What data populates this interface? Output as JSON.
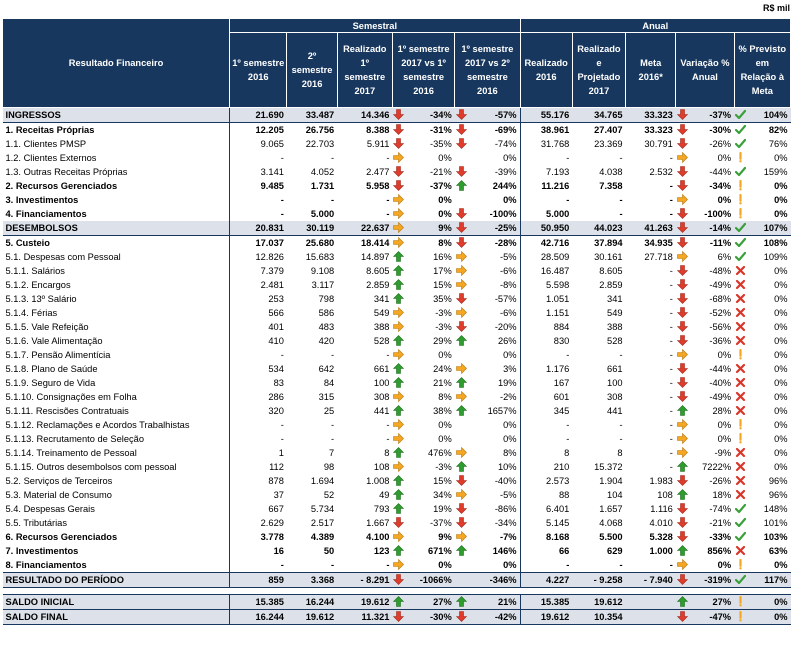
{
  "unit": "R$ mil",
  "header": {
    "row_label": "Resultado Financeiro",
    "group_semestral": "Semestral",
    "group_anual": "Anual",
    "cols": [
      "1º semestre 2016",
      "2º semestre 2016",
      "Realizado 1º semestre 2017",
      "1º semestre 2017 vs 1º semestre 2016",
      "1º semestre 2017 vs 2º semestre 2016",
      "Realizado 2016",
      "Realizado e Projetado 2017",
      "Meta 2016*",
      "Variação % Anual",
      "% Previsto em Relação à Meta"
    ]
  },
  "colors": {
    "header_bg": "#17375e",
    "up": "#2e9c2e",
    "down": "#e03c2c",
    "flat": "#f5a623",
    "check": "#3aa03a",
    "cross": "#d9362a",
    "warn": "#f5a623"
  },
  "rows": [
    {
      "label": "INGRESSOS",
      "bold": true,
      "shade": true,
      "v": [
        "21.690",
        "33.487",
        "14.346"
      ],
      "p1": [
        "-34%",
        "down"
      ],
      "p2": [
        "-57%",
        "down"
      ],
      "a": [
        "55.176",
        "34.765",
        "33.323"
      ],
      "va": [
        "-37%",
        "down"
      ],
      "pm": [
        "104%",
        "check"
      ]
    },
    {
      "label": "1. Receitas Próprias",
      "bold": true,
      "v": [
        "12.205",
        "26.756",
        "8.388"
      ],
      "p1": [
        "-31%",
        "down"
      ],
      "p2": [
        "-69%",
        "down"
      ],
      "a": [
        "38.961",
        "27.407",
        "33.323"
      ],
      "va": [
        "-30%",
        "down"
      ],
      "pm": [
        "82%",
        "check"
      ]
    },
    {
      "label": "1.1. Clientes PMSP",
      "v": [
        "9.065",
        "22.703",
        "5.911"
      ],
      "p1": [
        "-35%",
        "down"
      ],
      "p2": [
        "-74%",
        "down"
      ],
      "a": [
        "31.768",
        "23.369",
        "30.791"
      ],
      "va": [
        "-26%",
        "down"
      ],
      "pm": [
        "76%",
        "check"
      ]
    },
    {
      "label": "1.2. Clientes Externos",
      "v": [
        "-",
        "-",
        "-"
      ],
      "p1": [
        "0%",
        "flat"
      ],
      "p2": [
        "0%",
        ""
      ],
      "a": [
        "-",
        "-",
        "-"
      ],
      "va": [
        "0%",
        "flat"
      ],
      "pm": [
        "0%",
        "warn"
      ]
    },
    {
      "label": "1.3. Outras Receitas Próprias",
      "v": [
        "3.141",
        "4.052",
        "2.477"
      ],
      "p1": [
        "-21%",
        "down"
      ],
      "p2": [
        "-39%",
        "down"
      ],
      "a": [
        "7.193",
        "4.038",
        "2.532"
      ],
      "va": [
        "-44%",
        "down"
      ],
      "pm": [
        "159%",
        "check"
      ]
    },
    {
      "label": "2. Recursos Gerenciados",
      "bold": true,
      "v": [
        "9.485",
        "1.731",
        "5.958"
      ],
      "p1": [
        "-37%",
        "down"
      ],
      "p2": [
        "244%",
        "up"
      ],
      "a": [
        "11.216",
        "7.358",
        "-"
      ],
      "va": [
        "-34%",
        "down"
      ],
      "pm": [
        "0%",
        "warn"
      ]
    },
    {
      "label": "3. Investimentos",
      "bold": true,
      "v": [
        "-",
        "-",
        "-"
      ],
      "p1": [
        "0%",
        "flat"
      ],
      "p2": [
        "0%",
        ""
      ],
      "a": [
        "-",
        "-",
        "-"
      ],
      "va": [
        "0%",
        "flat"
      ],
      "pm": [
        "0%",
        "warn"
      ]
    },
    {
      "label": "4. Financiamentos",
      "bold": true,
      "v": [
        "-",
        "5.000",
        "-"
      ],
      "p1": [
        "0%",
        "flat"
      ],
      "p2": [
        "-100%",
        "down"
      ],
      "a": [
        "5.000",
        "-",
        "-"
      ],
      "va": [
        "-100%",
        "down"
      ],
      "pm": [
        "0%",
        "warn"
      ]
    },
    {
      "label": "DESEMBOLSOS",
      "bold": true,
      "shade": true,
      "v": [
        "20.831",
        "30.119",
        "22.637"
      ],
      "p1": [
        "9%",
        "flat"
      ],
      "p2": [
        "-25%",
        "down"
      ],
      "a": [
        "50.950",
        "44.023",
        "41.263"
      ],
      "va": [
        "-14%",
        "down"
      ],
      "pm": [
        "107%",
        "check"
      ]
    },
    {
      "label": "5. Custeio",
      "bold": true,
      "v": [
        "17.037",
        "25.680",
        "18.414"
      ],
      "p1": [
        "8%",
        "flat"
      ],
      "p2": [
        "-28%",
        "down"
      ],
      "a": [
        "42.716",
        "37.894",
        "34.935"
      ],
      "va": [
        "-11%",
        "down"
      ],
      "pm": [
        "108%",
        "check"
      ]
    },
    {
      "label": "5.1. Despesas com Pessoal",
      "v": [
        "12.826",
        "15.683",
        "14.897"
      ],
      "p1": [
        "16%",
        "up"
      ],
      "p2": [
        "-5%",
        "flat"
      ],
      "a": [
        "28.509",
        "30.161",
        "27.718"
      ],
      "va": [
        "6%",
        "flat"
      ],
      "pm": [
        "109%",
        "check"
      ]
    },
    {
      "label": "5.1.1. Salários",
      "v": [
        "7.379",
        "9.108",
        "8.605"
      ],
      "p1": [
        "17%",
        "up"
      ],
      "p2": [
        "-6%",
        "flat"
      ],
      "a": [
        "16.487",
        "8.605",
        "-"
      ],
      "va": [
        "-48%",
        "down"
      ],
      "pm": [
        "0%",
        "cross"
      ]
    },
    {
      "label": "5.1.2. Encargos",
      "v": [
        "2.481",
        "3.117",
        "2.859"
      ],
      "p1": [
        "15%",
        "up"
      ],
      "p2": [
        "-8%",
        "flat"
      ],
      "a": [
        "5.598",
        "2.859",
        "-"
      ],
      "va": [
        "-49%",
        "down"
      ],
      "pm": [
        "0%",
        "cross"
      ]
    },
    {
      "label": "5.1.3. 13º Salário",
      "v": [
        "253",
        "798",
        "341"
      ],
      "p1": [
        "35%",
        "up"
      ],
      "p2": [
        "-57%",
        "down"
      ],
      "a": [
        "1.051",
        "341",
        "-"
      ],
      "va": [
        "-68%",
        "down"
      ],
      "pm": [
        "0%",
        "cross"
      ]
    },
    {
      "label": "5.1.4. Férias",
      "v": [
        "566",
        "586",
        "549"
      ],
      "p1": [
        "-3%",
        "flat"
      ],
      "p2": [
        "-6%",
        "flat"
      ],
      "a": [
        "1.151",
        "549",
        "-"
      ],
      "va": [
        "-52%",
        "down"
      ],
      "pm": [
        "0%",
        "cross"
      ]
    },
    {
      "label": "5.1.5. Vale Refeição",
      "v": [
        "401",
        "483",
        "388"
      ],
      "p1": [
        "-3%",
        "flat"
      ],
      "p2": [
        "-20%",
        "down"
      ],
      "a": [
        "884",
        "388",
        "-"
      ],
      "va": [
        "-56%",
        "down"
      ],
      "pm": [
        "0%",
        "cross"
      ]
    },
    {
      "label": "5.1.6. Vale Alimentação",
      "v": [
        "410",
        "420",
        "528"
      ],
      "p1": [
        "29%",
        "up"
      ],
      "p2": [
        "26%",
        "up"
      ],
      "a": [
        "830",
        "528",
        "-"
      ],
      "va": [
        "-36%",
        "down"
      ],
      "pm": [
        "0%",
        "cross"
      ]
    },
    {
      "label": "5.1.7. Pensão Alimentícia",
      "v": [
        "-",
        "-",
        "-"
      ],
      "p1": [
        "0%",
        "flat"
      ],
      "p2": [
        "0%",
        ""
      ],
      "a": [
        "-",
        "-",
        "-"
      ],
      "va": [
        "0%",
        "flat"
      ],
      "pm": [
        "0%",
        "warn"
      ]
    },
    {
      "label": "5.1.8. Plano de Saúde",
      "v": [
        "534",
        "642",
        "661"
      ],
      "p1": [
        "24%",
        "up"
      ],
      "p2": [
        "3%",
        "flat"
      ],
      "a": [
        "1.176",
        "661",
        "-"
      ],
      "va": [
        "-44%",
        "down"
      ],
      "pm": [
        "0%",
        "cross"
      ]
    },
    {
      "label": "5.1.9. Seguro de Vida",
      "v": [
        "83",
        "84",
        "100"
      ],
      "p1": [
        "21%",
        "up"
      ],
      "p2": [
        "19%",
        "up"
      ],
      "a": [
        "167",
        "100",
        "-"
      ],
      "va": [
        "-40%",
        "down"
      ],
      "pm": [
        "0%",
        "cross"
      ]
    },
    {
      "label": "5.1.10. Consignações em Folha",
      "v": [
        "286",
        "315",
        "308"
      ],
      "p1": [
        "8%",
        "flat"
      ],
      "p2": [
        "-2%",
        "flat"
      ],
      "a": [
        "601",
        "308",
        "-"
      ],
      "va": [
        "-49%",
        "down"
      ],
      "pm": [
        "0%",
        "cross"
      ]
    },
    {
      "label": "5.1.11. Rescisões Contratuais",
      "v": [
        "320",
        "25",
        "441"
      ],
      "p1": [
        "38%",
        "up"
      ],
      "p2": [
        "1657%",
        "up"
      ],
      "a": [
        "345",
        "441",
        "-"
      ],
      "va": [
        "28%",
        "up"
      ],
      "pm": [
        "0%",
        "cross"
      ]
    },
    {
      "label": "5.1.12. Reclamações e Acordos Trabalhistas",
      "v": [
        "-",
        "-",
        "-"
      ],
      "p1": [
        "0%",
        "flat"
      ],
      "p2": [
        "0%",
        ""
      ],
      "a": [
        "-",
        "-",
        "-"
      ],
      "va": [
        "0%",
        "flat"
      ],
      "pm": [
        "0%",
        "warn"
      ]
    },
    {
      "label": "5.1.13. Recrutamento de Seleção",
      "v": [
        "-",
        "-",
        "-"
      ],
      "p1": [
        "0%",
        "flat"
      ],
      "p2": [
        "0%",
        ""
      ],
      "a": [
        "-",
        "-",
        "-"
      ],
      "va": [
        "0%",
        "flat"
      ],
      "pm": [
        "0%",
        "warn"
      ]
    },
    {
      "label": "5.1.14. Treinamento de Pessoal",
      "v": [
        "1",
        "7",
        "8"
      ],
      "p1": [
        "476%",
        "up"
      ],
      "p2": [
        "8%",
        "flat"
      ],
      "a": [
        "8",
        "8",
        "-"
      ],
      "va": [
        "-9%",
        "flat"
      ],
      "pm": [
        "0%",
        "cross"
      ]
    },
    {
      "label": "5.1.15. Outros desembolsos com pessoal",
      "v": [
        "112",
        "98",
        "108"
      ],
      "p1": [
        "-3%",
        "flat"
      ],
      "p2": [
        "10%",
        "up"
      ],
      "a": [
        "210",
        "15.372",
        "-"
      ],
      "va": [
        "7222%",
        "up"
      ],
      "pm": [
        "0%",
        "cross"
      ]
    },
    {
      "label": "5.2. Serviços de Terceiros",
      "v": [
        "878",
        "1.694",
        "1.008"
      ],
      "p1": [
        "15%",
        "up"
      ],
      "p2": [
        "-40%",
        "down"
      ],
      "a": [
        "2.573",
        "1.904",
        "1.983"
      ],
      "va": [
        "-26%",
        "down"
      ],
      "pm": [
        "96%",
        "cross"
      ]
    },
    {
      "label": "5.3. Material de Consumo",
      "v": [
        "37",
        "52",
        "49"
      ],
      "p1": [
        "34%",
        "up"
      ],
      "p2": [
        "-5%",
        "flat"
      ],
      "a": [
        "88",
        "104",
        "108"
      ],
      "va": [
        "18%",
        "up"
      ],
      "pm": [
        "96%",
        "cross"
      ]
    },
    {
      "label": "5.4. Despesas Gerais",
      "v": [
        "667",
        "5.734",
        "793"
      ],
      "p1": [
        "19%",
        "up"
      ],
      "p2": [
        "-86%",
        "down"
      ],
      "a": [
        "6.401",
        "1.657",
        "1.116"
      ],
      "va": [
        "-74%",
        "down"
      ],
      "pm": [
        "148%",
        "check"
      ]
    },
    {
      "label": "5.5. Tributárias",
      "v": [
        "2.629",
        "2.517",
        "1.667"
      ],
      "p1": [
        "-37%",
        "down"
      ],
      "p2": [
        "-34%",
        "down"
      ],
      "a": [
        "5.145",
        "4.068",
        "4.010"
      ],
      "va": [
        "-21%",
        "down"
      ],
      "pm": [
        "101%",
        "check"
      ]
    },
    {
      "label": "6. Recursos Gerenciados",
      "bold": true,
      "v": [
        "3.778",
        "4.389",
        "4.100"
      ],
      "p1": [
        "9%",
        "flat"
      ],
      "p2": [
        "-7%",
        "flat"
      ],
      "a": [
        "8.168",
        "5.500",
        "5.328"
      ],
      "va": [
        "-33%",
        "down"
      ],
      "pm": [
        "103%",
        "check"
      ]
    },
    {
      "label": "7. Investimentos",
      "bold": true,
      "v": [
        "16",
        "50",
        "123"
      ],
      "p1": [
        "671%",
        "up"
      ],
      "p2": [
        "146%",
        "up"
      ],
      "a": [
        "66",
        "629",
        "1.000"
      ],
      "va": [
        "856%",
        "up"
      ],
      "pm": [
        "63%",
        "cross"
      ]
    },
    {
      "label": "8. Financiamentos",
      "bold": true,
      "v": [
        "-",
        "-",
        "-"
      ],
      "p1": [
        "0%",
        "flat"
      ],
      "p2": [
        "0%",
        ""
      ],
      "a": [
        "-",
        "-",
        "-"
      ],
      "va": [
        "0%",
        "flat"
      ],
      "pm": [
        "0%",
        "warn"
      ]
    },
    {
      "label": "RESULTADO DO PERÍODO",
      "bold": true,
      "shade": true,
      "total": true,
      "v": [
        "859",
        "3.368",
        "- 8.291"
      ],
      "p1": [
        "-1066%",
        "down"
      ],
      "p2": [
        "-346%",
        ""
      ],
      "a": [
        "4.227",
        "- 9.258",
        "- 7.940"
      ],
      "va": [
        "-319%",
        "down"
      ],
      "pm": [
        "117%",
        "check"
      ]
    },
    {
      "gap": true
    },
    {
      "label": "SALDO INICIAL",
      "bold": true,
      "shade": true,
      "total": true,
      "v": [
        "15.385",
        "16.244",
        "19.612"
      ],
      "p1": [
        "27%",
        "up"
      ],
      "p2": [
        "21%",
        "up"
      ],
      "a": [
        "15.385",
        "19.612",
        ""
      ],
      "va": [
        "27%",
        "up"
      ],
      "pm": [
        "0%",
        "warn"
      ]
    },
    {
      "label": "SALDO FINAL",
      "bold": true,
      "shade": true,
      "v": [
        "16.244",
        "19.612",
        "11.321"
      ],
      "p1": [
        "-30%",
        "down"
      ],
      "p2": [
        "-42%",
        "down"
      ],
      "a": [
        "19.612",
        "10.354",
        ""
      ],
      "va": [
        "-47%",
        "down"
      ],
      "pm": [
        "0%",
        "warn"
      ]
    }
  ]
}
